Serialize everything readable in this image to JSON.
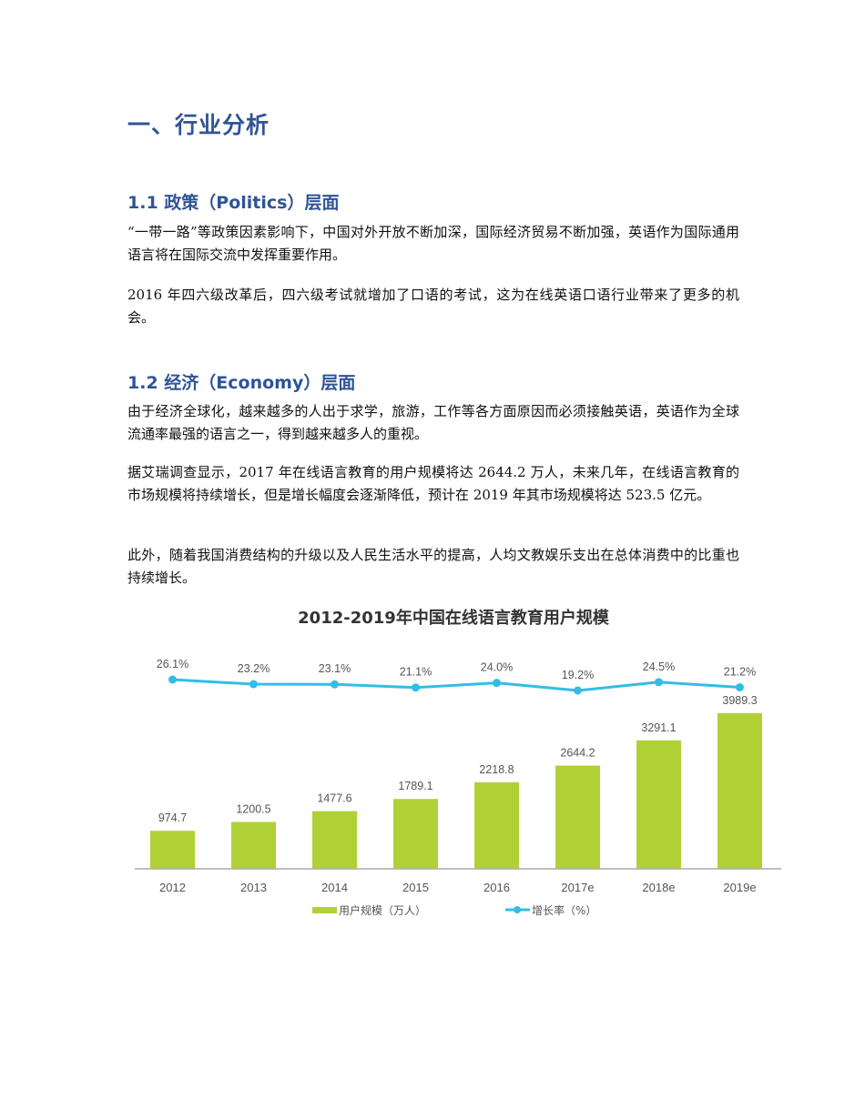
{
  "document": {
    "heading1": "一、行业分析",
    "sections": [
      {
        "heading": "1.1 政策（Politics）层面",
        "paragraphs": [
          "“一带一路”等政策因素影响下，中国对外开放不断加深，国际经济贸易不断加强，英语作为国际通用语言将在国际交流中发挥重要作用。",
          "2016 年四六级改革后，四六级考试就增加了口语的考试，这为在线英语口语行业带来了更多的机会。"
        ]
      },
      {
        "heading": "1.2 经济（Economy）层面",
        "paragraphs": [
          "由于经济全球化，越来越多的人出于求学，旅游，工作等各方面原因而必须接触英语，英语作为全球流通率最强的语言之一，得到越来越多人的重视。",
          "据艾瑞调查显示，2017 年在线语言教育的用户规模将达 2644.2 万人，未来几年，在线语言教育的市场规模将持续增长，但是增长幅度会逐渐降低，预计在 2019 年其市场规模将达 523.5 亿元。",
          "此外，随着我国消费结构的升级以及人民生活水平的提高，人均文教娱乐支出在总体消费中的比重也持续增长。"
        ]
      }
    ]
  },
  "colors": {
    "heading": "#2f5496",
    "bar": "#b0d136",
    "line": "#33bde6",
    "axis": "#aaaaaa",
    "text": "#555555"
  },
  "chart_data": {
    "type": "bar",
    "title": "2012-2019年中国在线语言教育用户规模",
    "categories": [
      "2012",
      "2013",
      "2014",
      "2015",
      "2016",
      "2017e",
      "2018e",
      "2019e"
    ],
    "series": [
      {
        "name": "用户规模（万人）",
        "type": "bar",
        "values": [
          974.7,
          1200.5,
          1477.6,
          1789.1,
          2218.8,
          2644.2,
          3291.1,
          3989.3
        ],
        "labels": [
          "974.7",
          "1200.5",
          "1477.6",
          "1789.1",
          "2218.8",
          "2644.2",
          "3291.1",
          "3989.3"
        ]
      },
      {
        "name": "增长率（%）",
        "type": "line",
        "values": [
          26.1,
          23.2,
          23.1,
          21.1,
          24.0,
          19.2,
          24.5,
          21.2
        ],
        "labels": [
          "26.1%",
          "23.2%",
          "23.1%",
          "21.1%",
          "24.0%",
          "19.2%",
          "24.5%",
          "21.2%"
        ]
      }
    ],
    "legend": [
      "用户规模（万人）",
      "增长率（%）"
    ],
    "legend_position": "bottom",
    "xlabel": "",
    "ylabel": "",
    "grid": false,
    "ylim": [
      0,
      4000
    ]
  }
}
